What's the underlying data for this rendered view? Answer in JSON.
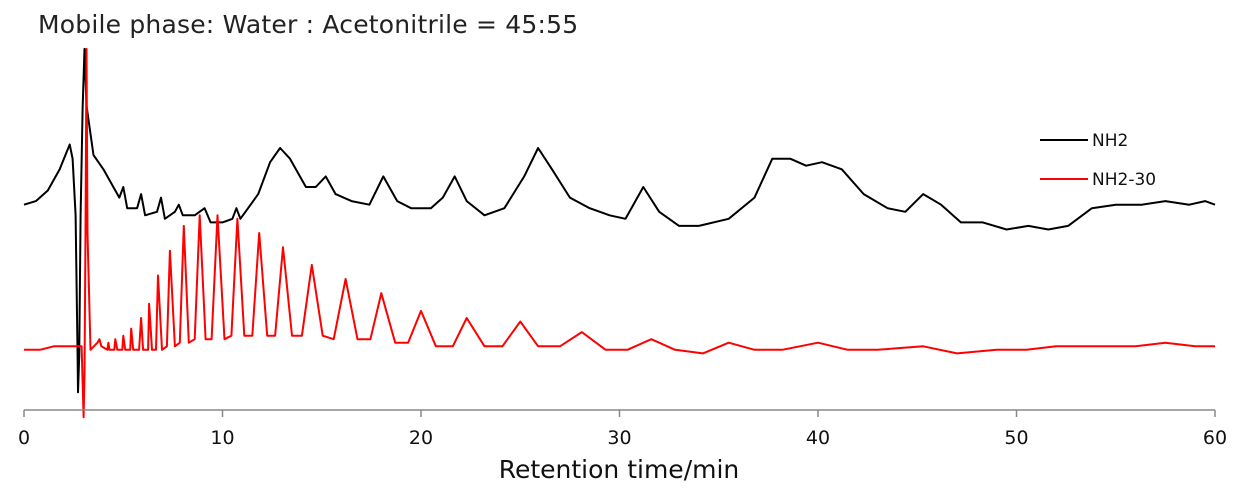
{
  "chart_data": {
    "type": "line",
    "title": "Mobile phase: Water : Acetonitrile = 45:55",
    "xlabel": "Retention time/min",
    "ylabel": "",
    "xlim": [
      0,
      60
    ],
    "xticks": [
      "0",
      "10",
      "20",
      "30",
      "40",
      "50",
      "60"
    ],
    "grid": false,
    "legend_position": "top-right",
    "series": [
      {
        "name": "NH2",
        "color": "#000000",
        "x": [
          0,
          0.6,
          1.2,
          1.8,
          2.3,
          2.45,
          2.6,
          2.7,
          2.72,
          2.78,
          2.85,
          2.95,
          3.05,
          3.15,
          3.5,
          4.0,
          4.8,
          5.0,
          5.2,
          5.7,
          5.9,
          6.1,
          6.7,
          6.9,
          7.1,
          7.6,
          7.8,
          8.0,
          8.6,
          9.1,
          9.4,
          10.0,
          10.5,
          10.7,
          10.9,
          11.8,
          12.4,
          12.9,
          13.4,
          14.2,
          14.7,
          15.2,
          15.7,
          16.5,
          17.4,
          18.1,
          18.8,
          19.5,
          20.5,
          21.1,
          21.7,
          22.3,
          23.2,
          24.2,
          25.2,
          25.9,
          26.6,
          27.5,
          28.5,
          29.5,
          30.3,
          31.2,
          32.0,
          33.0,
          34.0,
          35.5,
          36.8,
          37.7,
          38.6,
          39.4,
          40.2,
          41.2,
          42.3,
          43.5,
          44.4,
          45.3,
          46.2,
          47.2,
          48.3,
          49.5,
          50.6,
          51.6,
          52.6,
          53.8,
          55.0,
          56.3,
          57.5,
          58.7,
          59.5,
          60
        ],
        "y": [
          0.58,
          0.59,
          0.62,
          0.68,
          0.75,
          0.71,
          0.55,
          0.15,
          0.05,
          0.15,
          0.55,
          0.85,
          1.02,
          0.86,
          0.72,
          0.68,
          0.6,
          0.63,
          0.57,
          0.57,
          0.61,
          0.55,
          0.56,
          0.6,
          0.54,
          0.56,
          0.58,
          0.55,
          0.55,
          0.57,
          0.53,
          0.53,
          0.54,
          0.57,
          0.54,
          0.61,
          0.7,
          0.74,
          0.71,
          0.63,
          0.63,
          0.66,
          0.61,
          0.59,
          0.58,
          0.66,
          0.59,
          0.57,
          0.57,
          0.6,
          0.66,
          0.59,
          0.55,
          0.57,
          0.66,
          0.74,
          0.68,
          0.6,
          0.57,
          0.55,
          0.54,
          0.63,
          0.56,
          0.52,
          0.52,
          0.54,
          0.6,
          0.71,
          0.71,
          0.69,
          0.7,
          0.68,
          0.61,
          0.57,
          0.56,
          0.61,
          0.58,
          0.53,
          0.53,
          0.51,
          0.52,
          0.51,
          0.52,
          0.57,
          0.58,
          0.58,
          0.59,
          0.58,
          0.59,
          0.58
        ]
      },
      {
        "name": "NH2-30",
        "color": "#ff0000",
        "x": [
          0,
          0.8,
          1.5,
          2.0,
          2.5,
          2.75,
          2.9,
          3.0,
          3.05,
          3.1,
          3.15,
          3.2,
          3.35,
          3.7,
          3.8,
          3.9,
          4.2,
          4.25,
          4.3,
          4.55,
          4.6,
          4.7,
          4.95,
          5.0,
          5.1,
          5.35,
          5.4,
          5.5,
          5.8,
          5.9,
          6.0,
          6.25,
          6.3,
          6.45,
          6.65,
          6.75,
          6.95,
          7.2,
          7.35,
          7.6,
          7.85,
          8.05,
          8.3,
          8.6,
          8.85,
          9.15,
          9.45,
          9.75,
          10.1,
          10.45,
          10.75,
          11.1,
          11.5,
          11.85,
          12.25,
          12.65,
          13.05,
          13.5,
          14.0,
          14.5,
          15.05,
          15.6,
          16.2,
          16.8,
          17.45,
          18.0,
          18.7,
          19.35,
          20.0,
          20.75,
          21.6,
          22.3,
          23.2,
          24.1,
          25.0,
          25.9,
          27.0,
          28.1,
          29.3,
          30.4,
          31.6,
          32.8,
          34.2,
          35.5,
          36.8,
          38.2,
          40.0,
          41.5,
          43.0,
          45.3,
          47.0,
          49.0,
          50.5,
          52.0,
          54.0,
          56.0,
          57.5,
          59.0,
          60
        ],
        "y": [
          0.17,
          0.17,
          0.18,
          0.18,
          0.18,
          0.18,
          0.18,
          -0.02,
          0.1,
          0.5,
          1.02,
          0.5,
          0.17,
          0.19,
          0.2,
          0.18,
          0.17,
          0.19,
          0.17,
          0.17,
          0.2,
          0.17,
          0.17,
          0.21,
          0.17,
          0.17,
          0.23,
          0.17,
          0.17,
          0.26,
          0.17,
          0.17,
          0.3,
          0.17,
          0.17,
          0.38,
          0.17,
          0.18,
          0.45,
          0.18,
          0.19,
          0.52,
          0.19,
          0.2,
          0.55,
          0.2,
          0.2,
          0.55,
          0.2,
          0.21,
          0.54,
          0.21,
          0.21,
          0.5,
          0.21,
          0.21,
          0.46,
          0.21,
          0.21,
          0.41,
          0.21,
          0.2,
          0.37,
          0.2,
          0.2,
          0.33,
          0.19,
          0.19,
          0.28,
          0.18,
          0.18,
          0.26,
          0.18,
          0.18,
          0.25,
          0.18,
          0.18,
          0.22,
          0.17,
          0.17,
          0.2,
          0.17,
          0.16,
          0.19,
          0.17,
          0.17,
          0.19,
          0.17,
          0.17,
          0.18,
          0.16,
          0.17,
          0.17,
          0.18,
          0.18,
          0.18,
          0.19,
          0.18,
          0.18
        ]
      }
    ]
  }
}
